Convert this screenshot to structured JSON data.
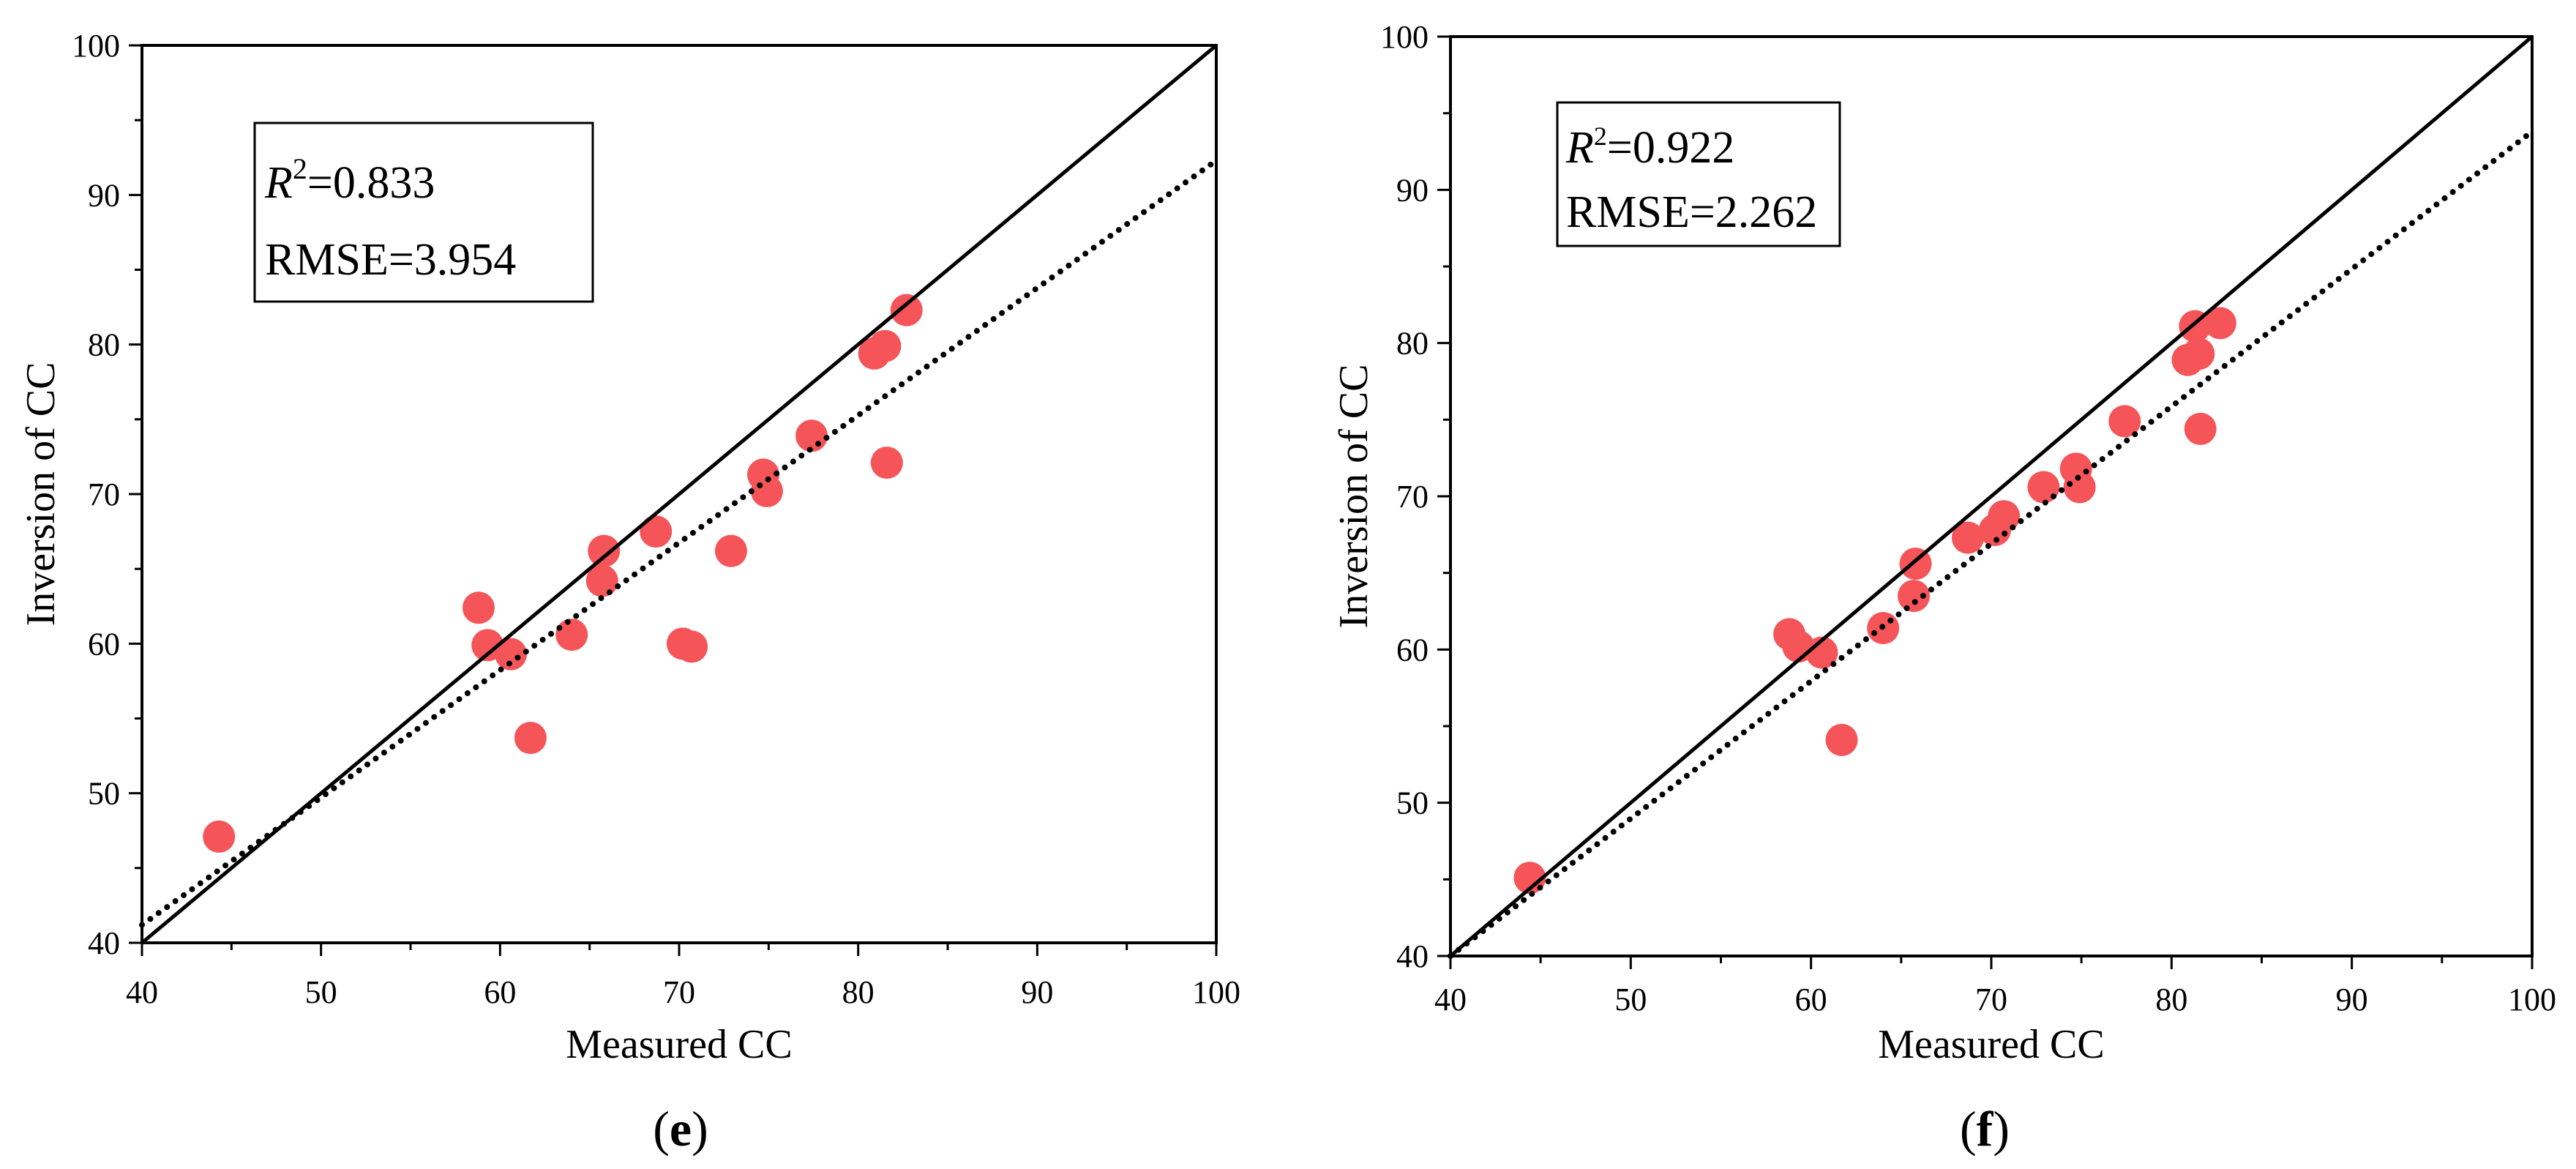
{
  "figure_title": "",
  "chart_data": [
    {
      "type": "scatter",
      "panel_label": "e",
      "title": "",
      "xlabel": "Measured CC",
      "ylabel": "Inversion of CC",
      "xlim": [
        40,
        100
      ],
      "ylim": [
        40,
        100
      ],
      "xticks": [
        40,
        50,
        60,
        70,
        80,
        90,
        100
      ],
      "yticks": [
        40,
        50,
        60,
        70,
        80,
        90,
        100
      ],
      "grid": false,
      "point_color": "#f55458",
      "stats": {
        "r2_label": "R",
        "r2_sup": "2",
        "r2_value": "=0.833",
        "rmse_text": "RMSE=3.954"
      },
      "reference_line": {
        "name": "1:1 line",
        "x": [
          40,
          100
        ],
        "y": [
          40,
          100
        ]
      },
      "fit_line": {
        "name": "fitted line",
        "x": [
          40,
          100
        ],
        "y": [
          41.2,
          92.3
        ]
      },
      "series": [
        {
          "name": "samples",
          "x": [
            44.3,
            58.8,
            59.3,
            60.6,
            61.7,
            64.0,
            65.7,
            65.8,
            68.7,
            70.2,
            70.7,
            72.9,
            74.7,
            74.9,
            77.4,
            80.9,
            81.5,
            81.6,
            82.7
          ],
          "y": [
            47.1,
            62.4,
            59.9,
            59.3,
            53.7,
            60.6,
            64.2,
            66.2,
            67.5,
            60.0,
            59.8,
            66.2,
            71.3,
            70.2,
            73.9,
            79.4,
            79.9,
            72.1,
            82.3
          ]
        }
      ]
    },
    {
      "type": "scatter",
      "panel_label": "f",
      "title": "",
      "xlabel": "Measured CC",
      "ylabel": "Inversion of CC",
      "xlim": [
        40,
        100
      ],
      "ylim": [
        40,
        100
      ],
      "xticks": [
        40,
        50,
        60,
        70,
        80,
        90,
        100
      ],
      "yticks": [
        40,
        50,
        60,
        70,
        80,
        90,
        100
      ],
      "grid": false,
      "point_color": "#f55458",
      "stats": {
        "r2_label": "R",
        "r2_sup": "2",
        "r2_value": "=0.922",
        "rmse_text": "RMSE=2.262"
      },
      "reference_line": {
        "name": "1:1 line",
        "x": [
          40,
          100
        ],
        "y": [
          40,
          100
        ]
      },
      "fit_line": {
        "name": "fitted line",
        "x": [
          40,
          100
        ],
        "y": [
          40.0,
          93.8
        ]
      },
      "series": [
        {
          "name": "samples",
          "x": [
            44.4,
            58.8,
            59.3,
            60.6,
            61.7,
            64.0,
            65.7,
            65.8,
            68.7,
            70.2,
            70.7,
            72.9,
            74.7,
            74.9,
            77.4,
            80.9,
            81.3,
            81.5,
            81.6,
            82.7
          ],
          "y": [
            45.1,
            61.0,
            60.2,
            59.8,
            54.1,
            61.4,
            63.5,
            65.6,
            67.3,
            67.8,
            68.7,
            70.6,
            71.8,
            70.6,
            74.9,
            78.9,
            81.1,
            79.3,
            74.4,
            81.3
          ]
        }
      ]
    }
  ]
}
